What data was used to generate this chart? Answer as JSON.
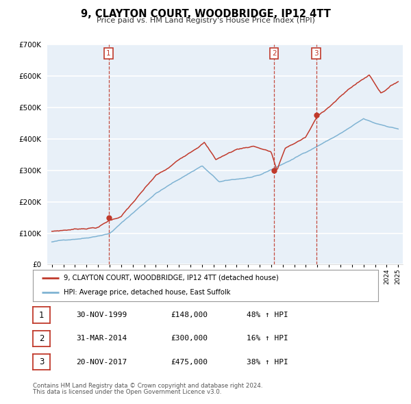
{
  "title": "9, CLAYTON COURT, WOODBRIDGE, IP12 4TT",
  "subtitle": "Price paid vs. HM Land Registry's House Price Index (HPI)",
  "plot_bg_color": "#e8f0f8",
  "ylim": [
    0,
    700000
  ],
  "yticks": [
    0,
    100000,
    200000,
    300000,
    400000,
    500000,
    600000,
    700000
  ],
  "xlim_start": 1994.6,
  "xlim_end": 2025.4,
  "red_line_color": "#c0392b",
  "blue_line_color": "#7fb3d3",
  "sale_points": [
    {
      "year": 1999.917,
      "price": 148000,
      "label": "1"
    },
    {
      "year": 2014.25,
      "price": 300000,
      "label": "2"
    },
    {
      "year": 2017.9,
      "price": 475000,
      "label": "3"
    }
  ],
  "legend_label_red": "9, CLAYTON COURT, WOODBRIDGE, IP12 4TT (detached house)",
  "legend_label_blue": "HPI: Average price, detached house, East Suffolk",
  "table_rows": [
    {
      "num": "1",
      "date": "30-NOV-1999",
      "price": "£148,000",
      "pct": "48% ↑ HPI"
    },
    {
      "num": "2",
      "date": "31-MAR-2014",
      "price": "£300,000",
      "pct": "16% ↑ HPI"
    },
    {
      "num": "3",
      "date": "20-NOV-2017",
      "price": "£475,000",
      "pct": "38% ↑ HPI"
    }
  ],
  "footnote1": "Contains HM Land Registry data © Crown copyright and database right 2024.",
  "footnote2": "This data is licensed under the Open Government Licence v3.0."
}
